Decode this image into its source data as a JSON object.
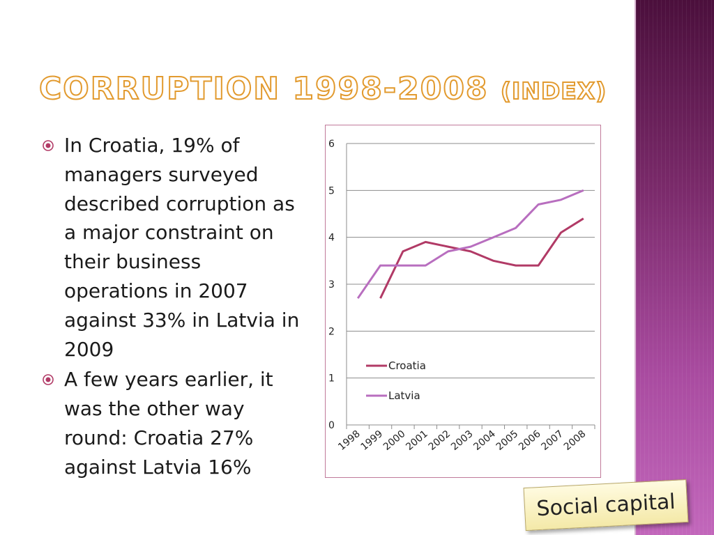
{
  "title": {
    "main": "Corruption 1998-2008",
    "suffix": "(index)"
  },
  "colors": {
    "accent": "#e29a2e",
    "croatia": "#b13a66",
    "latvia": "#b86ebf",
    "sidebar": "#7a2a6a"
  },
  "bullets": [
    {
      "icon": "circle-dot-icon",
      "text": "In Croatia, 19% of managers surveyed described corruption as a major constraint on their business operations in 2007 against 33% in Latvia in 2009"
    },
    {
      "icon": "circle-dot-icon",
      "text": "A few years earlier, it was the other way round: Croatia 27% against Latvia 16%"
    }
  ],
  "stamp": {
    "label": "Social capital"
  },
  "chart_data": {
    "type": "line",
    "title": "",
    "xlabel": "",
    "ylabel": "",
    "categories": [
      "1998",
      "1999",
      "2000",
      "2001",
      "2002",
      "2003",
      "2004",
      "2005",
      "2006",
      "2007",
      "2008"
    ],
    "ylim": [
      0,
      6
    ],
    "yticks": [
      "0",
      "1",
      "2",
      "3",
      "4",
      "5",
      "6"
    ],
    "grid": true,
    "legend": "center-left",
    "series": [
      {
        "name": "Croatia",
        "color": "#b13a66",
        "values": [
          null,
          2.7,
          3.7,
          3.9,
          3.8,
          3.7,
          3.5,
          3.4,
          3.4,
          4.1,
          4.4
        ]
      },
      {
        "name": "Latvia",
        "color": "#b86ebf",
        "values": [
          2.7,
          3.4,
          3.4,
          3.4,
          3.7,
          3.8,
          4.0,
          4.2,
          4.7,
          4.8,
          5.0
        ]
      }
    ]
  }
}
